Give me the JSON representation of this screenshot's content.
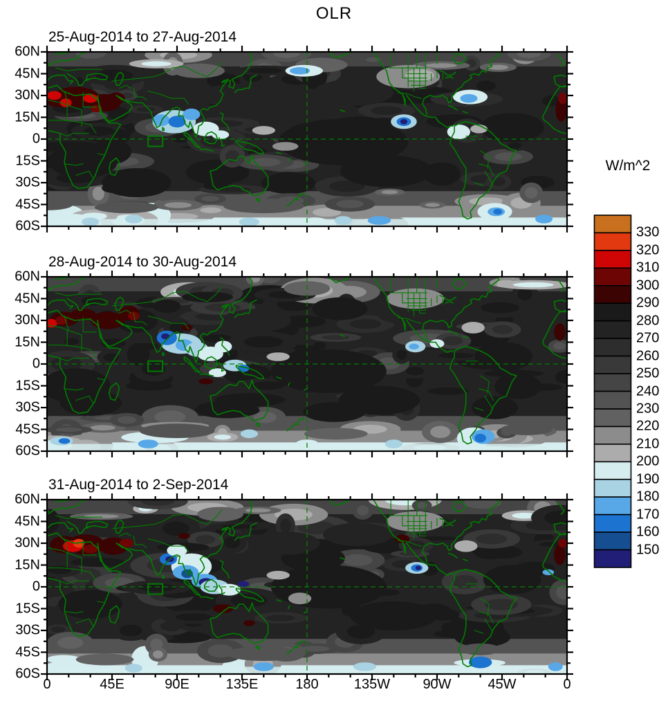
{
  "title": "OLR",
  "colorbar": {
    "units_label": "W/m^2",
    "tick_labels": [
      "330",
      "320",
      "310",
      "300",
      "290",
      "280",
      "270",
      "260",
      "250",
      "240",
      "230",
      "220",
      "210",
      "200",
      "190",
      "180",
      "170",
      "160",
      "150"
    ],
    "box_colors_top_to_bottom": [
      "#C8701E",
      "#E23910",
      "#CF0505",
      "#6E0505",
      "#3C0303",
      "#1A1A1A",
      "#232323",
      "#2D2D2D",
      "#393939",
      "#454545",
      "#535353",
      "#616161",
      "#8C8C8C",
      "#ACACAC",
      "#D6EDF0",
      "#A9D3E3",
      "#58A8E8",
      "#1C74D0",
      "#164E92",
      "#211E78"
    ]
  },
  "axes": {
    "x_tick_labels": [
      "0",
      "45E",
      "90E",
      "135E",
      "180",
      "135W",
      "90W",
      "45W",
      "0"
    ],
    "y_tick_labels": [
      "60N",
      "45N",
      "30N",
      "15N",
      "0",
      "15S",
      "30S",
      "45S",
      "60S"
    ]
  },
  "map_colors": {
    "coastline_green": "#007C00",
    "equator_dash_green": "#008000",
    "frame_black": "#000000"
  },
  "chart_data": {
    "type": "heatmap",
    "variable": "OLR",
    "title": "OLR",
    "units": "W/m^2",
    "projection": "cylindrical-equidistant",
    "lon_range_deg_east": [
      0,
      360
    ],
    "lat_range": [
      -60,
      60
    ],
    "x_ticks_deg": [
      0,
      45,
      90,
      135,
      180,
      225,
      270,
      315,
      360
    ],
    "y_ticks_deg": [
      60,
      45,
      30,
      15,
      0,
      -15,
      -30,
      -45,
      -60
    ],
    "contour_levels_wm2": [
      150,
      160,
      170,
      180,
      190,
      200,
      210,
      220,
      230,
      240,
      250,
      260,
      270,
      280,
      290,
      300,
      310,
      320,
      330
    ],
    "colors_top_to_bottom": [
      "#C8701E",
      "#E23910",
      "#CF0505",
      "#6E0505",
      "#3C0303",
      "#1A1A1A",
      "#232323",
      "#2D2D2D",
      "#393939",
      "#454545",
      "#535353",
      "#616161",
      "#8C8C8C",
      "#ACACAC",
      "#D6EDF0",
      "#A9D3E3",
      "#58A8E8",
      "#1C74D0",
      "#164E92",
      "#211E78"
    ],
    "region_box_lonlat": [
      70,
      -5,
      80,
      2
    ],
    "panels": [
      {
        "title": "25-Aug-2014 to 27-Aug-2014",
        "seed": 11,
        "pools": [
          [
            205,
            -2,
            45,
            16,
            285
          ],
          [
            235,
            -22,
            32,
            11,
            285
          ],
          [
            322,
            8,
            22,
            10,
            285
          ],
          [
            25,
            -15,
            24,
            12,
            285
          ],
          [
            62,
            -30,
            24,
            10,
            285
          ],
          [
            130,
            30,
            24,
            8,
            275
          ],
          [
            212,
            32,
            28,
            9,
            275
          ],
          [
            250,
            43,
            22,
            8,
            215
          ],
          [
            258,
            44,
            10,
            4,
            205
          ],
          [
            190,
            51,
            18,
            5,
            225
          ],
          [
            105,
            47,
            18,
            5,
            225
          ],
          [
            150,
            -46,
            28,
            5,
            235
          ],
          [
            55,
            -47,
            22,
            4,
            235
          ],
          [
            0,
            -45,
            18,
            4,
            235
          ]
        ],
        "anoms": [
          [
            20,
            29,
            16,
            7,
            295
          ],
          [
            8,
            27,
            9,
            5,
            295
          ],
          [
            40,
            25,
            11,
            6,
            295
          ],
          [
            5,
            30,
            5,
            3,
            315
          ],
          [
            13,
            25,
            4,
            3,
            315
          ],
          [
            30,
            28,
            5,
            3,
            315
          ],
          [
            34,
            21,
            4,
            2.5,
            305
          ],
          [
            48,
            28,
            6,
            4,
            295
          ],
          [
            356,
            20,
            4,
            8,
            295
          ],
          [
            357,
            28,
            3,
            4,
            305
          ],
          [
            88,
            12,
            15,
            8,
            185
          ],
          [
            79,
            13,
            6,
            4,
            175
          ],
          [
            90,
            12,
            6,
            4,
            165
          ],
          [
            100,
            17,
            6,
            4,
            175
          ],
          [
            110,
            7,
            9,
            5,
            195
          ],
          [
            120,
            3,
            6,
            3,
            195
          ],
          [
            178,
            47,
            13,
            4,
            195
          ],
          [
            175,
            47,
            7,
            2.5,
            175
          ],
          [
            247,
            12,
            9,
            5,
            185
          ],
          [
            247,
            12,
            5,
            3,
            165
          ],
          [
            247,
            12,
            2.5,
            1.8,
            145
          ],
          [
            293,
            29,
            12,
            5,
            195
          ],
          [
            292,
            28,
            6,
            3,
            175
          ],
          [
            285,
            5,
            8,
            5,
            195
          ],
          [
            299,
            7,
            6,
            3,
            205
          ],
          [
            150,
            6,
            8,
            3,
            205
          ],
          [
            165,
            -5,
            9,
            3,
            215
          ],
          [
            310,
            -50,
            12,
            6,
            195
          ],
          [
            311,
            -50,
            6,
            3,
            175
          ],
          [
            312,
            -50,
            3,
            2,
            165
          ],
          [
            230,
            -56,
            8,
            3,
            175
          ],
          [
            205,
            -56,
            6,
            3,
            185
          ],
          [
            140,
            -57,
            7,
            3,
            185
          ],
          [
            60,
            -55,
            6,
            3,
            185
          ],
          [
            344,
            -55,
            6,
            3,
            175
          ],
          [
            30,
            -57,
            6,
            3,
            185
          ]
        ]
      },
      {
        "title": "28-Aug-2014 to 30-Aug-2014",
        "seed": 22,
        "pools": [
          [
            195,
            -5,
            40,
            15,
            285
          ],
          [
            230,
            -25,
            28,
            10,
            285
          ],
          [
            316,
            5,
            20,
            10,
            285
          ],
          [
            20,
            -15,
            24,
            12,
            285
          ],
          [
            145,
            30,
            24,
            8,
            275
          ],
          [
            252,
            35,
            24,
            8,
            275
          ],
          [
            310,
            -30,
            16,
            8,
            285
          ],
          [
            255,
            45,
            20,
            7,
            215
          ],
          [
            180,
            52,
            16,
            5,
            225
          ],
          [
            90,
            -46,
            26,
            5,
            235
          ],
          [
            200,
            -48,
            22,
            4,
            225
          ],
          [
            332,
            -45,
            18,
            4,
            235
          ]
        ],
        "anoms": [
          [
            12,
            31,
            10,
            5,
            295
          ],
          [
            25,
            34,
            9,
            4,
            295
          ],
          [
            42,
            30,
            12,
            6,
            295
          ],
          [
            57,
            35,
            7,
            5,
            295
          ],
          [
            3,
            28,
            4,
            3,
            315
          ],
          [
            10,
            30,
            4,
            3,
            305
          ],
          [
            60,
            33,
            4,
            3,
            305
          ],
          [
            97,
            25,
            4,
            2,
            295
          ],
          [
            355,
            22,
            4,
            6,
            295
          ],
          [
            110,
            -12,
            5,
            2,
            295
          ],
          [
            93,
            14,
            14,
            7,
            185
          ],
          [
            83,
            18,
            7,
            5,
            165
          ],
          [
            82,
            19,
            3,
            2,
            145
          ],
          [
            95,
            13,
            6,
            4,
            175
          ],
          [
            104,
            10,
            8,
            5,
            185
          ],
          [
            113,
            7,
            9,
            5,
            195
          ],
          [
            122,
            12,
            6,
            4,
            195
          ],
          [
            130,
            -1,
            8,
            4,
            185
          ],
          [
            136,
            -3,
            4,
            2.5,
            165
          ],
          [
            118,
            -6,
            6,
            3,
            195
          ],
          [
            255,
            12,
            7,
            4,
            185
          ],
          [
            254,
            12,
            3.5,
            2,
            175
          ],
          [
            270,
            14,
            5,
            3,
            195
          ],
          [
            295,
            25,
            8,
            4,
            205
          ],
          [
            160,
            5,
            8,
            3,
            205
          ],
          [
            302,
            -50,
            8,
            5,
            175
          ],
          [
            300,
            -51,
            4,
            3,
            165
          ],
          [
            70,
            -55,
            7,
            3,
            175
          ],
          [
            10,
            -53,
            8,
            3,
            185
          ],
          [
            12,
            -53,
            4,
            2,
            165
          ],
          [
            180,
            -55,
            8,
            3,
            195
          ],
          [
            240,
            -55,
            6,
            3,
            185
          ],
          [
            140,
            -48,
            6,
            3,
            185
          ]
        ]
      },
      {
        "title": "31-Aug-2014 to 2-Sep-2014",
        "seed": 33,
        "pools": [
          [
            195,
            0,
            40,
            15,
            285
          ],
          [
            240,
            -20,
            30,
            10,
            285
          ],
          [
            322,
            5,
            20,
            10,
            285
          ],
          [
            30,
            -12,
            22,
            10,
            285
          ],
          [
            165,
            30,
            24,
            8,
            275
          ],
          [
            215,
            36,
            24,
            8,
            275
          ],
          [
            255,
            45,
            20,
            7,
            215
          ],
          [
            120,
            50,
            16,
            5,
            225
          ],
          [
            150,
            -46,
            26,
            5,
            235
          ],
          [
            40,
            -50,
            20,
            4,
            225
          ],
          [
            300,
            -43,
            14,
            4,
            235
          ]
        ],
        "anoms": [
          [
            12,
            29,
            10,
            6,
            295
          ],
          [
            27,
            29,
            13,
            7,
            295
          ],
          [
            46,
            28,
            10,
            6,
            295
          ],
          [
            18,
            28,
            7,
            4,
            315
          ],
          [
            22,
            30,
            4,
            3,
            325
          ],
          [
            30,
            26,
            5,
            3,
            305
          ],
          [
            55,
            30,
            5,
            3,
            305
          ],
          [
            95,
            35,
            4,
            2,
            295
          ],
          [
            355,
            22,
            4,
            7,
            295
          ],
          [
            357,
            30,
            3,
            3,
            305
          ],
          [
            122,
            -15,
            7,
            3,
            295
          ],
          [
            140,
            -25,
            4,
            2,
            295
          ],
          [
            246,
            33,
            5,
            3,
            295
          ],
          [
            100,
            14,
            14,
            9,
            195
          ],
          [
            96,
            10,
            9,
            5,
            175
          ],
          [
            97,
            9,
            4,
            3,
            155
          ],
          [
            84,
            19,
            6,
            4,
            165
          ],
          [
            85,
            19,
            3,
            2,
            145
          ],
          [
            109,
            4,
            9,
            5,
            175
          ],
          [
            110,
            3,
            5,
            3,
            150
          ],
          [
            116,
            0,
            10,
            5,
            185
          ],
          [
            126,
            -2,
            8,
            4,
            195
          ],
          [
            136,
            2,
            4,
            2,
            145
          ],
          [
            90,
            25,
            7,
            4,
            195
          ],
          [
            256,
            13,
            8,
            4,
            185
          ],
          [
            256,
            13,
            4,
            2.5,
            165
          ],
          [
            257,
            13,
            2,
            1.5,
            145
          ],
          [
            290,
            28,
            8,
            4,
            205
          ],
          [
            347,
            10,
            4,
            2,
            175
          ],
          [
            160,
            8,
            8,
            3,
            205
          ],
          [
            175,
            -8,
            8,
            4,
            215
          ],
          [
            300,
            -52,
            8,
            4,
            165
          ],
          [
            220,
            -55,
            8,
            3,
            185
          ],
          [
            150,
            -55,
            7,
            3,
            175
          ],
          [
            60,
            -56,
            6,
            3,
            185
          ],
          [
            352,
            -55,
            5,
            3,
            175
          ],
          [
            10,
            -50,
            6,
            3,
            195
          ]
        ]
      }
    ]
  }
}
